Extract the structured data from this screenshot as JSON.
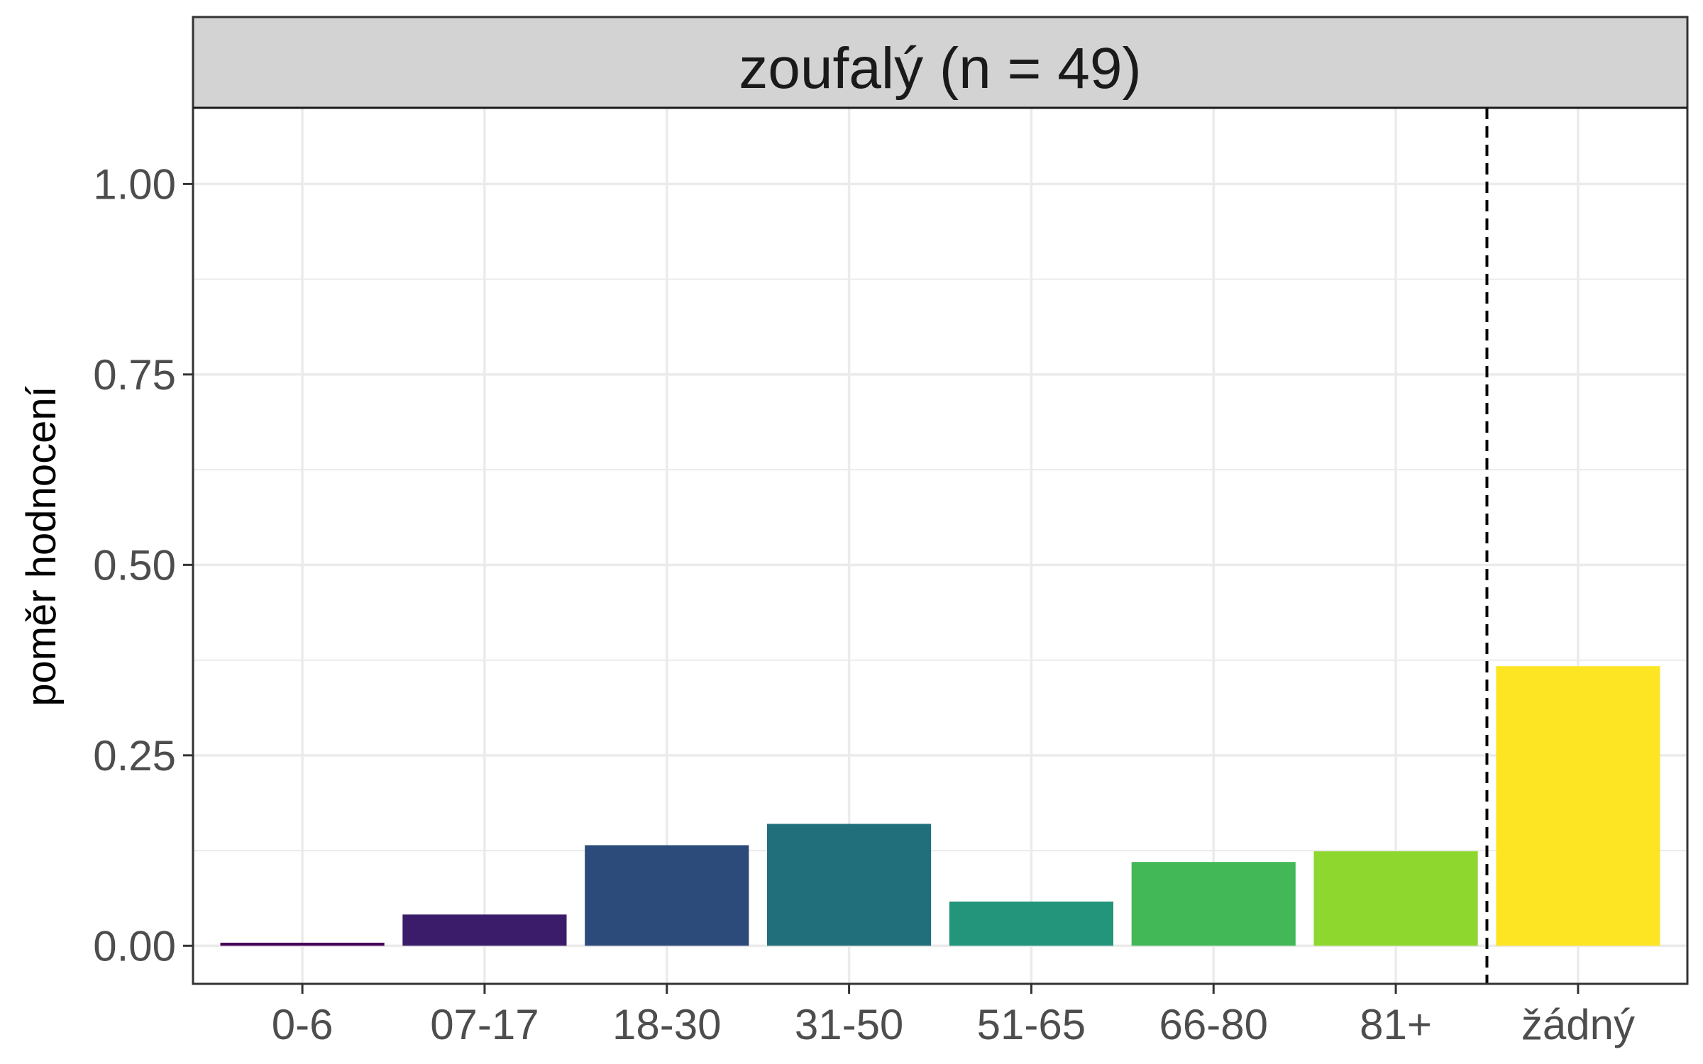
{
  "chart_data": {
    "type": "bar",
    "facet_title": "zoufalý (n = 49)",
    "ylabel": "poměr hodnocení",
    "xlabel": "",
    "categories": [
      "0-6",
      "07-17",
      "18-30",
      "31-50",
      "51-65",
      "66-80",
      "81+",
      "žádný"
    ],
    "values": [
      0.004,
      0.041,
      0.132,
      0.16,
      0.058,
      0.11,
      0.124,
      0.367
    ],
    "colors": [
      "#440154",
      "#3B1C6A",
      "#2C4A7A",
      "#216F7B",
      "#22957A",
      "#42B857",
      "#8ED72E",
      "#FDE523"
    ],
    "ylim": [
      -0.05,
      1.1
    ],
    "yticks": [
      0,
      0.25,
      0.5,
      0.75,
      1.0
    ],
    "ytick_labels": [
      "0.00",
      "0.25",
      "0.50",
      "0.75",
      "1.00"
    ],
    "reference_line": {
      "style": "dashed",
      "between": [
        "81+",
        "žádný"
      ]
    },
    "grid": true,
    "theme": {
      "strip_fill": "#d3d3d3",
      "grid_color": "#ebebeb",
      "panel_border": "#333333"
    }
  }
}
